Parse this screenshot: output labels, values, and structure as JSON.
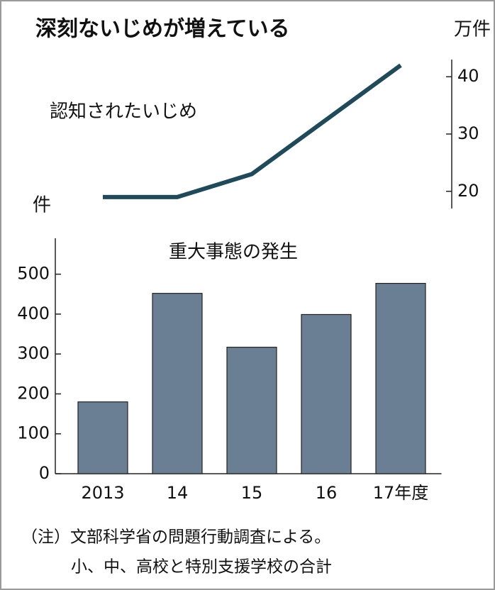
{
  "title": "深刻ないじめが増えている",
  "notes": [
    "（注）文部科学省の問題行動調査による。",
    "小、中、高校と特別支援学校の合計"
  ],
  "chart_data": [
    {
      "type": "line",
      "label": "認知されたいじめ",
      "y_label": "万件",
      "y_axis_side": "right",
      "categories": [
        "2013",
        "14",
        "15",
        "16",
        "17年度"
      ],
      "values": [
        19,
        19,
        23,
        32.5,
        42
      ],
      "color": "#1e4a5a",
      "ylim": [
        17,
        43
      ],
      "yticks": [
        20,
        30,
        40
      ]
    },
    {
      "type": "bar",
      "label": "重大事態の発生",
      "y_label": "件",
      "y_axis_side": "left",
      "categories": [
        "2013",
        "14",
        "15",
        "16",
        "17年度"
      ],
      "values": [
        180,
        452,
        317,
        399,
        477
      ],
      "color": "#6a7f93",
      "ylim": [
        0,
        590
      ],
      "yticks": [
        0,
        100,
        200,
        300,
        400,
        500
      ]
    }
  ]
}
